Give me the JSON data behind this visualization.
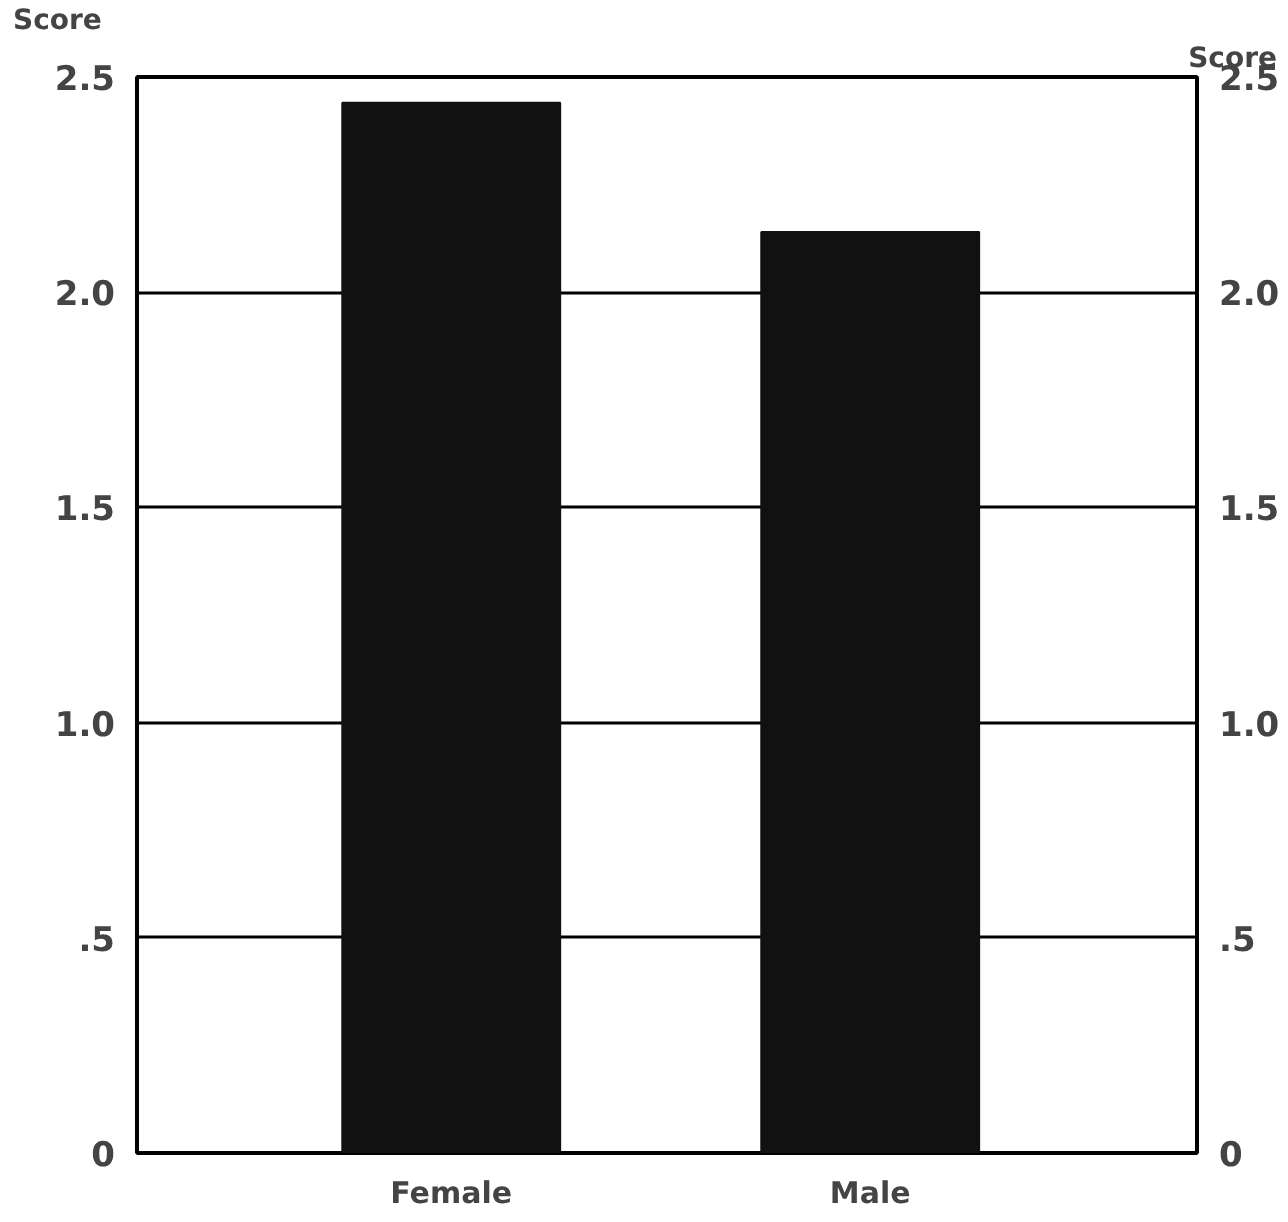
{
  "chart_data": {
    "type": "bar",
    "ylabel": "Score",
    "y2label": "Score",
    "categories": [
      "Female",
      "Male"
    ],
    "values": [
      2.44,
      2.14
    ],
    "color": "#111111",
    "ylim": [
      0,
      2.5
    ],
    "yticks": [
      0,
      {
        "value": 0.5,
        "label": ".5"
      },
      {
        "value": 1.0,
        "label": "1.0"
      },
      {
        "value": 1.5,
        "label": "1.5"
      },
      {
        "value": 2.0,
        "label": "2.0"
      },
      2.5
    ],
    "y2lim": [
      0,
      2.5
    ],
    "y2ticks": [
      0,
      {
        "value": 0.5,
        "label": ".5"
      },
      {
        "value": 1.0,
        "label": "1.0"
      },
      {
        "value": 1.5,
        "label": "1.5"
      },
      {
        "value": 2.0,
        "label": "2.0"
      },
      2.5
    ],
    "grid": "y"
  }
}
